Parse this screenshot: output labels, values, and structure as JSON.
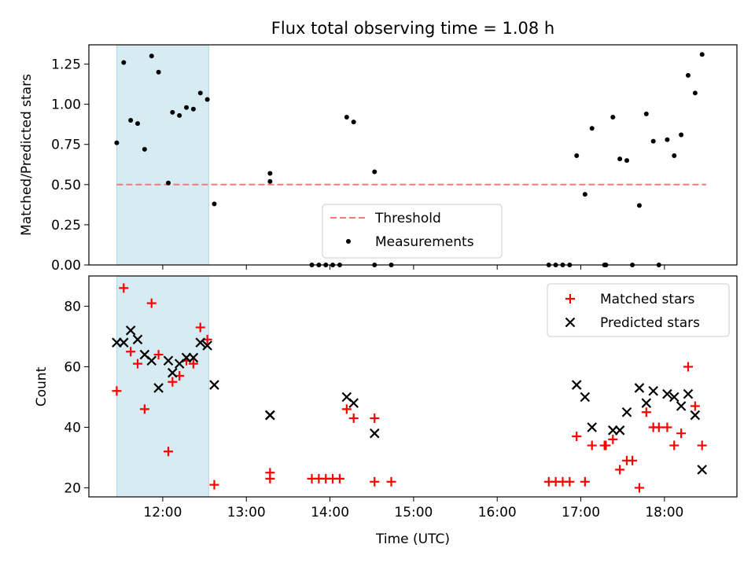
{
  "title": "Flux total observing time = 1.08 h",
  "xlabel": "Time (UTC)",
  "colors": {
    "threshold": "#f27a7a",
    "measurement": "#000000",
    "matched": "#ff0000",
    "predicted": "#000000",
    "shade": "#add8e6"
  },
  "chart_data": [
    {
      "type": "scatter",
      "ylabel": "Matched/Predicted stars",
      "xlim": [
        "11:07",
        "18:52"
      ],
      "ylim": [
        0,
        1.37
      ],
      "yticks": [
        "0.00",
        "0.25",
        "0.50",
        "0.75",
        "1.00",
        "1.25"
      ],
      "shaded_region": [
        "11:27",
        "12:33"
      ],
      "threshold": 0.5,
      "threshold_range": [
        "11:27",
        "18:30"
      ],
      "legend": {
        "position": "lower center",
        "entries": [
          "Threshold",
          "Measurements"
        ]
      },
      "series": [
        {
          "name": "Measurements",
          "points": [
            [
              "11:27",
              0.76
            ],
            [
              "11:32",
              1.26
            ],
            [
              "11:37",
              0.9
            ],
            [
              "11:42",
              0.88
            ],
            [
              "11:47",
              0.72
            ],
            [
              "11:52",
              1.3
            ],
            [
              "11:57",
              1.2
            ],
            [
              "12:04",
              0.51
            ],
            [
              "12:07",
              0.95
            ],
            [
              "12:12",
              0.93
            ],
            [
              "12:17",
              0.98
            ],
            [
              "12:22",
              0.97
            ],
            [
              "12:27",
              1.07
            ],
            [
              "12:32",
              1.03
            ],
            [
              "12:37",
              0.38
            ],
            [
              "13:17",
              0.57
            ],
            [
              "13:17",
              0.52
            ],
            [
              "13:47",
              0.0
            ],
            [
              "13:52",
              0.0
            ],
            [
              "13:57",
              0.0
            ],
            [
              "14:02",
              0.0
            ],
            [
              "14:07",
              0.0
            ],
            [
              "14:12",
              0.92
            ],
            [
              "14:17",
              0.89
            ],
            [
              "14:32",
              0.0
            ],
            [
              "14:32",
              0.58
            ],
            [
              "14:44",
              0.0
            ],
            [
              "16:37",
              0.0
            ],
            [
              "16:42",
              0.0
            ],
            [
              "16:47",
              0.0
            ],
            [
              "16:52",
              0.0
            ],
            [
              "16:57",
              0.68
            ],
            [
              "17:03",
              0.44
            ],
            [
              "17:08",
              0.85
            ],
            [
              "17:17",
              0.0
            ],
            [
              "17:18",
              0.0
            ],
            [
              "17:23",
              0.92
            ],
            [
              "17:28",
              0.66
            ],
            [
              "17:33",
              0.65
            ],
            [
              "17:37",
              0.0
            ],
            [
              "17:42",
              0.37
            ],
            [
              "17:47",
              0.94
            ],
            [
              "17:52",
              0.77
            ],
            [
              "17:56",
              0.0
            ],
            [
              "18:02",
              0.78
            ],
            [
              "18:07",
              0.68
            ],
            [
              "18:12",
              0.81
            ],
            [
              "18:17",
              1.18
            ],
            [
              "18:22",
              1.07
            ],
            [
              "18:27",
              1.31
            ]
          ]
        }
      ]
    },
    {
      "type": "scatter",
      "ylabel": "Count",
      "xlim": [
        "11:07",
        "18:52"
      ],
      "ylim": [
        17,
        90
      ],
      "yticks": [
        "20",
        "40",
        "60",
        "80"
      ],
      "xticks": [
        "12:00",
        "13:00",
        "14:00",
        "15:00",
        "16:00",
        "17:00",
        "18:00"
      ],
      "shaded_region": [
        "11:27",
        "12:33"
      ],
      "legend": {
        "position": "upper right",
        "entries": [
          "Matched stars",
          "Predicted stars"
        ]
      },
      "series": [
        {
          "name": "Matched stars",
          "marker": "+",
          "points": [
            [
              "11:27",
              52
            ],
            [
              "11:32",
              86
            ],
            [
              "11:37",
              65
            ],
            [
              "11:42",
              61
            ],
            [
              "11:47",
              46
            ],
            [
              "11:52",
              81
            ],
            [
              "11:57",
              64
            ],
            [
              "12:04",
              32
            ],
            [
              "12:07",
              55
            ],
            [
              "12:12",
              57
            ],
            [
              "12:17",
              62
            ],
            [
              "12:22",
              61
            ],
            [
              "12:27",
              73
            ],
            [
              "12:32",
              69
            ],
            [
              "12:37",
              21
            ],
            [
              "13:17",
              25
            ],
            [
              "13:17",
              23
            ],
            [
              "13:47",
              23
            ],
            [
              "13:52",
              23
            ],
            [
              "13:57",
              23
            ],
            [
              "14:02",
              23
            ],
            [
              "14:07",
              23
            ],
            [
              "14:12",
              46
            ],
            [
              "14:17",
              43
            ],
            [
              "14:32",
              22
            ],
            [
              "14:32",
              43
            ],
            [
              "14:44",
              22
            ],
            [
              "16:37",
              22
            ],
            [
              "16:42",
              22
            ],
            [
              "16:47",
              22
            ],
            [
              "16:52",
              22
            ],
            [
              "16:57",
              37
            ],
            [
              "17:03",
              22
            ],
            [
              "17:08",
              34
            ],
            [
              "17:17",
              34
            ],
            [
              "17:18",
              34
            ],
            [
              "17:23",
              36
            ],
            [
              "17:28",
              26
            ],
            [
              "17:33",
              29
            ],
            [
              "17:37",
              29
            ],
            [
              "17:42",
              20
            ],
            [
              "17:47",
              45
            ],
            [
              "17:52",
              40
            ],
            [
              "17:56",
              40
            ],
            [
              "18:02",
              40
            ],
            [
              "18:07",
              34
            ],
            [
              "18:12",
              38
            ],
            [
              "18:17",
              60
            ],
            [
              "18:22",
              47
            ],
            [
              "18:27",
              34
            ]
          ]
        },
        {
          "name": "Predicted stars",
          "marker": "x",
          "points": [
            [
              "11:27",
              68
            ],
            [
              "11:32",
              68
            ],
            [
              "11:37",
              72
            ],
            [
              "11:42",
              69
            ],
            [
              "11:47",
              64
            ],
            [
              "11:52",
              62
            ],
            [
              "11:57",
              53
            ],
            [
              "12:04",
              62
            ],
            [
              "12:07",
              58
            ],
            [
              "12:12",
              61
            ],
            [
              "12:17",
              63
            ],
            [
              "12:22",
              63
            ],
            [
              "12:27",
              68
            ],
            [
              "12:32",
              67
            ],
            [
              "12:37",
              54
            ],
            [
              "13:17",
              44
            ],
            [
              "13:17",
              44
            ],
            [
              "14:12",
              50
            ],
            [
              "14:17",
              48
            ],
            [
              "14:32",
              38
            ],
            [
              "16:57",
              54
            ],
            [
              "17:03",
              50
            ],
            [
              "17:08",
              40
            ],
            [
              "17:23",
              39
            ],
            [
              "17:28",
              39
            ],
            [
              "17:33",
              45
            ],
            [
              "17:42",
              53
            ],
            [
              "17:47",
              48
            ],
            [
              "17:52",
              52
            ],
            [
              "18:02",
              51
            ],
            [
              "18:07",
              50
            ],
            [
              "18:12",
              47
            ],
            [
              "18:17",
              51
            ],
            [
              "18:22",
              44
            ],
            [
              "18:27",
              26
            ]
          ]
        }
      ]
    }
  ]
}
